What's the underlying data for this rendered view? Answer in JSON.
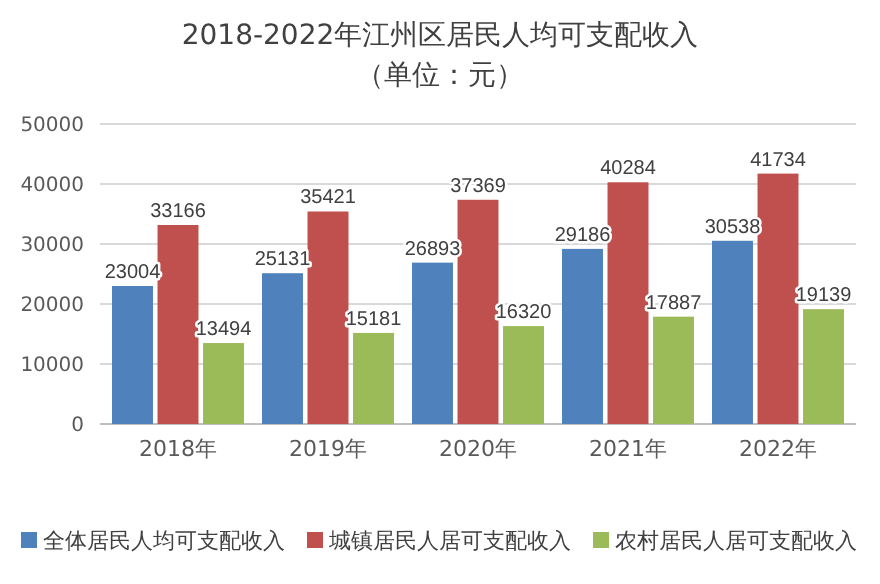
{
  "chart_data": {
    "type": "bar",
    "title": "2018-2022年江州区居民人均可支配收入",
    "subtitle": "（单位：元）",
    "categories": [
      "2018年",
      "2019年",
      "2020年",
      "2021年",
      "2022年"
    ],
    "series": [
      {
        "name": "全体居民人均可支配收入",
        "color": "#4f81bd",
        "values": [
          23004,
          25131,
          26893,
          29186,
          30538
        ]
      },
      {
        "name": "城镇居民人居可支配收入",
        "color": "#c0504d",
        "values": [
          33166,
          35421,
          37369,
          40284,
          41734
        ]
      },
      {
        "name": "农村居民人居可支配收入",
        "color": "#9bbb59",
        "values": [
          13494,
          15181,
          16320,
          17887,
          19139
        ]
      }
    ],
    "ylim": [
      0,
      50000
    ],
    "yticks": [
      0,
      10000,
      20000,
      30000,
      40000,
      50000
    ],
    "grid": "y",
    "legend": "bottom",
    "data_labels": true
  }
}
